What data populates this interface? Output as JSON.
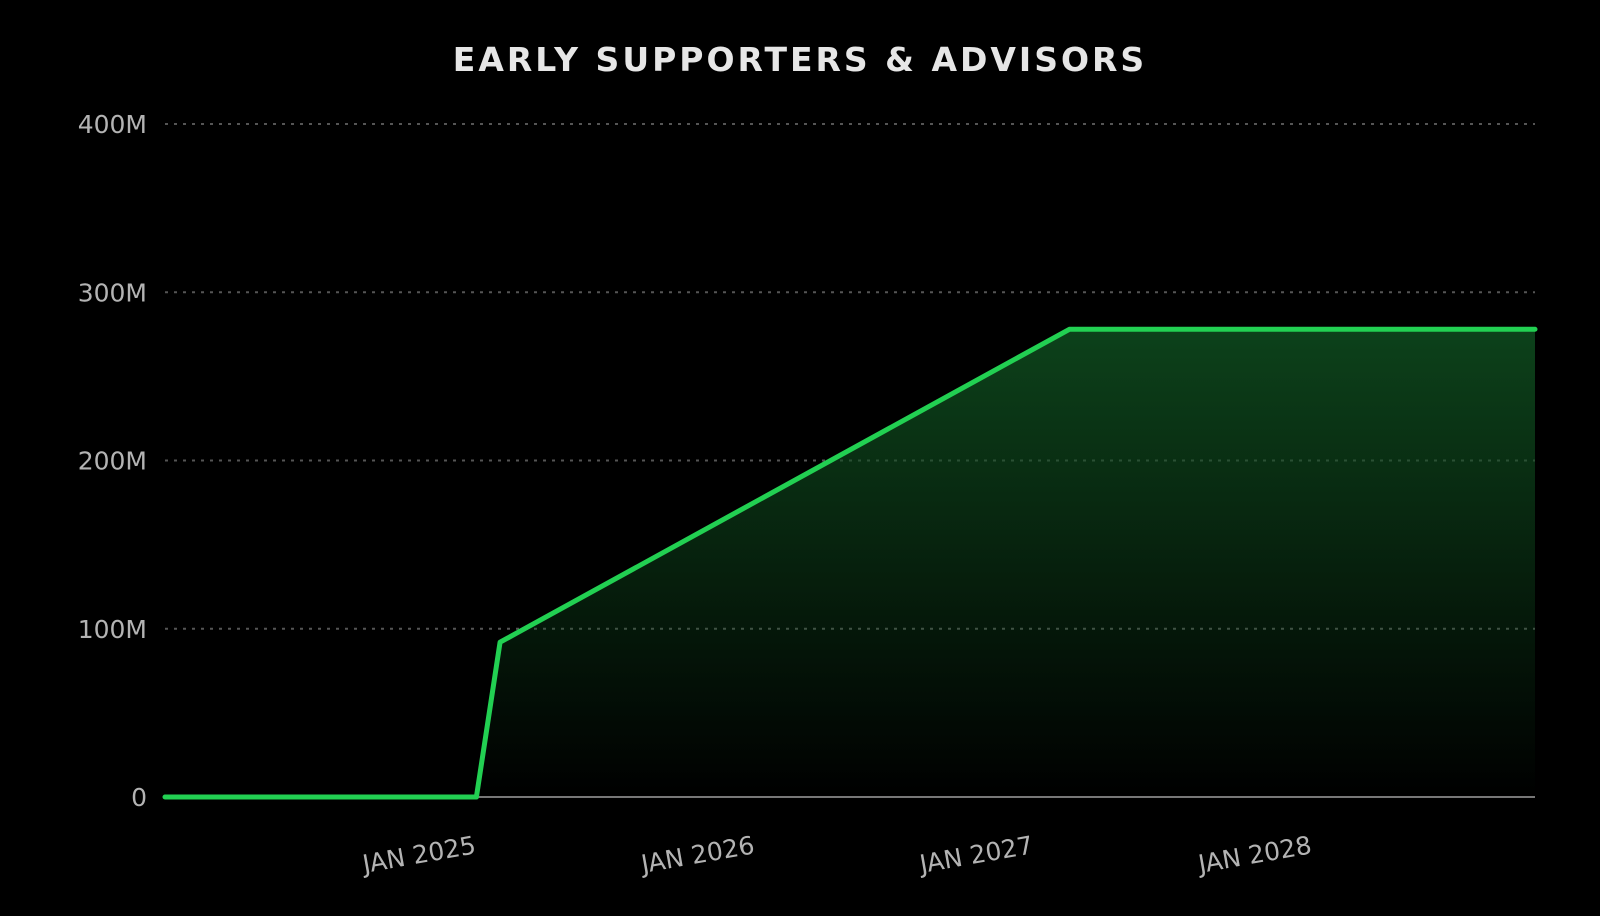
{
  "chart_data": {
    "type": "area",
    "title": "EARLY SUPPORTERS & ADVISORS",
    "xlabel": "",
    "ylabel": "",
    "x": [
      "2024-02-01",
      "2025-03-15",
      "2025-04-15",
      "2027-05-01",
      "2028-12-31"
    ],
    "series": [
      {
        "values": [
          0,
          0,
          92000000,
          278000000,
          278000000
        ]
      }
    ],
    "xlim": [
      "2024-02-01",
      "2028-12-31"
    ],
    "ylim": [
      0,
      400000000
    ],
    "yticks": [
      0,
      100000000,
      200000000,
      300000000,
      400000000
    ],
    "ytick_labels": [
      "0",
      "100M",
      "200M",
      "300M",
      "400M"
    ],
    "xticks": [
      "2025-01-01",
      "2026-01-01",
      "2027-01-01",
      "2028-01-01"
    ],
    "xtick_labels": [
      "JAN 2025",
      "JAN 2026",
      "JAN 2027",
      "JAN 2028"
    ],
    "grid": true,
    "legend": "none",
    "colors": {
      "line": "#22d052",
      "fill_top": "#0f4d1f",
      "background": "#000000",
      "grid": "#555555",
      "axis": "#777777",
      "text": "#b3b3b3",
      "title": "#e6e6e6"
    }
  }
}
